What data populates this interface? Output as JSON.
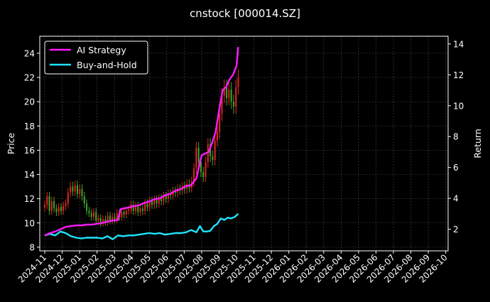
{
  "chart_data": {
    "type": "line",
    "title": "cnstock [000014.SZ]",
    "ylabel_left": "Price",
    "ylabel_right": "Return",
    "ylim_left": [
      7.7,
      25.4
    ],
    "ylim_right": [
      0.6,
      14.5
    ],
    "yticks_left": [
      8,
      10,
      12,
      14,
      16,
      18,
      20,
      22,
      24
    ],
    "yticks_right": [
      2,
      4,
      6,
      8,
      10,
      12,
      14
    ],
    "x_range": [
      "2024-11",
      "2026-10"
    ],
    "xticks": [
      "2024-11",
      "2024-12",
      "2025-01",
      "2025-02",
      "2025-03",
      "2025-04",
      "2025-05",
      "2025-06",
      "2025-07",
      "2025-08",
      "2025-09",
      "2025-10",
      "2025-11",
      "2025-12",
      "2026-01",
      "2026-02",
      "2026-03",
      "2026-04",
      "2026-05",
      "2026-06",
      "2026-07",
      "2026-08",
      "2026-09",
      "2026-10"
    ],
    "grid": true,
    "legend_position": "top-left",
    "colors": {
      "background": "#000000",
      "ai_strategy": "#ff1aff",
      "buy_and_hold": "#1ee5ff",
      "candle_up": "#e0281e",
      "candle_down": "#3fa52a",
      "text": "#ffffff"
    },
    "series": [
      {
        "name": "AI Strategy",
        "axis": "right",
        "x": [
          0,
          0.3,
          0.6,
          0.9,
          1.2,
          1.5,
          1.8,
          2.1,
          2.4,
          2.7,
          3.0,
          3.3,
          3.6,
          3.9,
          4.2,
          4.35,
          4.5,
          4.8,
          5.1,
          5.4,
          5.7,
          6.0,
          6.3,
          6.6,
          6.9,
          7.2,
          7.5,
          7.8,
          8.1,
          8.4,
          8.7,
          9.0,
          9.2,
          9.4,
          9.6,
          9.8,
          10.0,
          10.2,
          10.4,
          10.6,
          10.8,
          11.0,
          11.1
        ],
        "values": [
          1.6,
          1.75,
          1.85,
          2.0,
          2.15,
          2.2,
          2.25,
          2.25,
          2.3,
          2.3,
          2.35,
          2.4,
          2.5,
          2.55,
          2.6,
          3.3,
          3.35,
          3.4,
          3.5,
          3.55,
          3.7,
          3.8,
          3.95,
          4.0,
          4.2,
          4.3,
          4.5,
          4.6,
          4.8,
          4.85,
          5.3,
          6.8,
          6.9,
          7.0,
          7.6,
          8.3,
          9.7,
          11.0,
          11.2,
          11.7,
          12.0,
          12.6,
          13.8
        ]
      },
      {
        "name": "Buy-and-Hold",
        "axis": "right",
        "x": [
          0,
          0.3,
          0.6,
          0.9,
          1.2,
          1.5,
          1.8,
          2.1,
          2.4,
          2.7,
          3.0,
          3.3,
          3.6,
          3.9,
          4.2,
          4.5,
          4.8,
          5.1,
          5.4,
          5.7,
          6.0,
          6.3,
          6.6,
          6.9,
          7.2,
          7.5,
          7.8,
          8.1,
          8.4,
          8.7,
          8.9,
          9.1,
          9.3,
          9.5,
          9.7,
          9.9,
          10.1,
          10.3,
          10.5,
          10.7,
          10.9,
          11.1
        ],
        "values": [
          1.6,
          1.7,
          1.6,
          1.85,
          1.75,
          1.55,
          1.45,
          1.4,
          1.45,
          1.45,
          1.45,
          1.4,
          1.55,
          1.35,
          1.6,
          1.55,
          1.6,
          1.6,
          1.65,
          1.7,
          1.75,
          1.7,
          1.75,
          1.65,
          1.7,
          1.75,
          1.75,
          1.8,
          1.95,
          1.8,
          2.2,
          1.85,
          1.85,
          1.9,
          2.2,
          2.35,
          2.7,
          2.6,
          2.75,
          2.7,
          2.8,
          3.0
        ]
      },
      {
        "name": "",
        "type": "candlestick",
        "axis": "left",
        "x_start": 0,
        "x_end": 11.1,
        "values": [
          11.5,
          12.2,
          11.0,
          11.8,
          11.2,
          10.9,
          11.3,
          11.0,
          11.4,
          11.6,
          12.5,
          13.0,
          12.6,
          13.1,
          12.4,
          12.8,
          12.2,
          11.6,
          11.0,
          10.8,
          10.5,
          10.9,
          10.2,
          10.4,
          10.0,
          10.3,
          10.1,
          10.6,
          10.2,
          10.5,
          10.3,
          10.8,
          10.5,
          10.9,
          10.7,
          11.0,
          11.1,
          11.5,
          11.0,
          11.4,
          10.9,
          11.2,
          11.0,
          11.6,
          11.3,
          11.8,
          11.5,
          11.9,
          11.6,
          12.0,
          11.8,
          12.2,
          12.0,
          12.4,
          12.3,
          12.6,
          12.5,
          12.8,
          12.7,
          13.0,
          12.8,
          13.2,
          12.9,
          13.4,
          14.5,
          16.2,
          15.0,
          14.2,
          13.8,
          15.0,
          16.5,
          15.5,
          15.2,
          16.8,
          17.5,
          19.0,
          20.5,
          21.2,
          20.3,
          21.0,
          20.0,
          19.6,
          21.2,
          22.0
        ]
      }
    ]
  }
}
